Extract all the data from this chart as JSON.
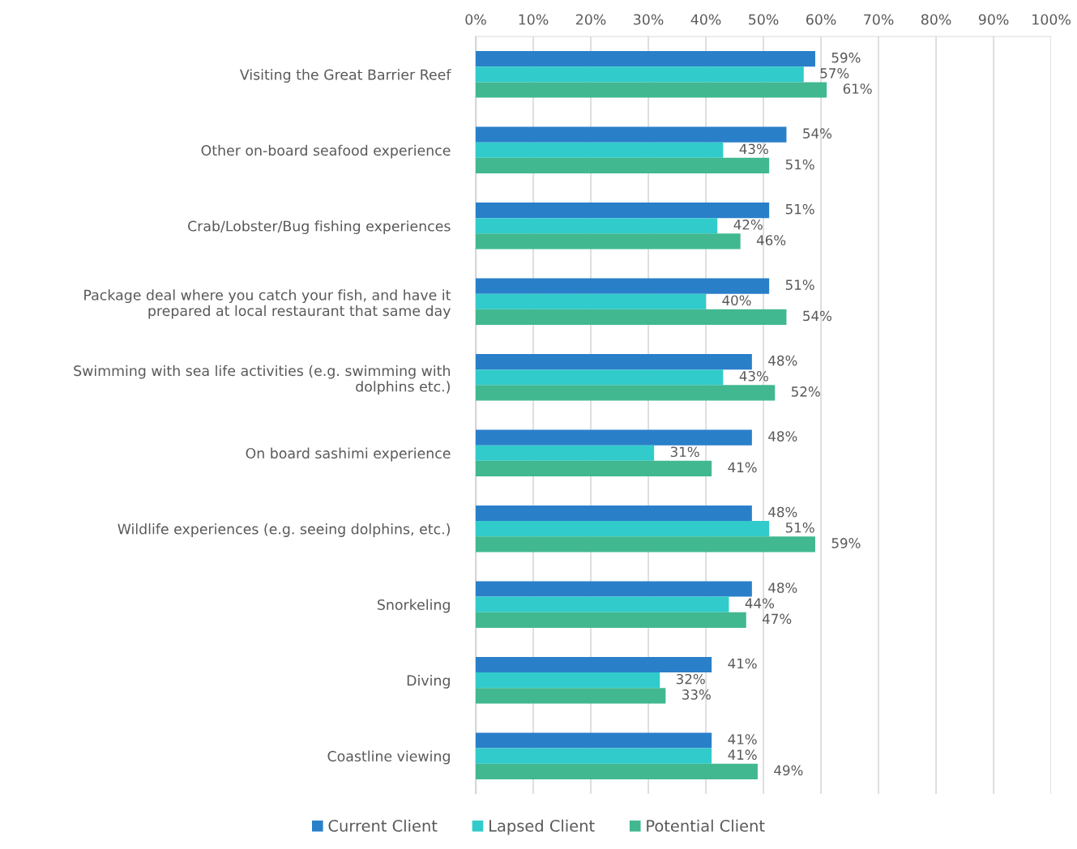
{
  "chart_data": {
    "type": "bar",
    "orientation": "horizontal",
    "categories": [
      "Visiting the Great Barrier Reef",
      "Other on-board seafood experience",
      "Crab/Lobster/Bug fishing experiences",
      "Package deal where you catch your fish, and have it\nprepared at local restaurant that same day",
      "Swimming with sea life activities (e.g. swimming with\ndolphins etc.)",
      "On board sashimi experience",
      "Wildlife experiences (e.g. seeing dolphins, etc.)",
      "Snorkeling",
      "Diving",
      "Coastline viewing"
    ],
    "series": [
      {
        "name": "Current Client",
        "color": "#2a7fc9",
        "values": [
          59,
          54,
          51,
          51,
          48,
          48,
          48,
          48,
          41,
          41
        ],
        "value_labels": [
          "59%",
          "54%",
          "51%",
          "51%",
          "48%",
          "48%",
          "48%",
          "48%",
          "41%",
          "41%"
        ]
      },
      {
        "name": "Lapsed Client",
        "color": "#31cbcb",
        "values": [
          57,
          43,
          42,
          40,
          43,
          31,
          51,
          44,
          32,
          41
        ],
        "value_labels": [
          "57%",
          "43%",
          "42%",
          "40%",
          "43%",
          "31%",
          "51%",
          "44%",
          "32%",
          "41%"
        ]
      },
      {
        "name": "Potential Client",
        "color": "#41b88f",
        "values": [
          61,
          51,
          46,
          54,
          52,
          41,
          59,
          47,
          33,
          49
        ],
        "value_labels": [
          "61%",
          "51%",
          "46%",
          "54%",
          "52%",
          "41%",
          "59%",
          "47%",
          "33%",
          "49%"
        ]
      }
    ],
    "xlim": [
      0,
      100
    ],
    "xticks": [
      {
        "value": 0,
        "label": "0%"
      },
      {
        "value": 10,
        "label": "10%"
      },
      {
        "value": 20,
        "label": "20%"
      },
      {
        "value": 30,
        "label": "30%"
      },
      {
        "value": 40,
        "label": "40%"
      },
      {
        "value": 50,
        "label": "50%"
      },
      {
        "value": 60,
        "label": "60%"
      },
      {
        "value": 70,
        "label": "70%"
      },
      {
        "value": 80,
        "label": "80%"
      },
      {
        "value": 90,
        "label": "90%"
      },
      {
        "value": 100,
        "label": "100%"
      }
    ],
    "grid": "x",
    "legend": "bottom"
  }
}
